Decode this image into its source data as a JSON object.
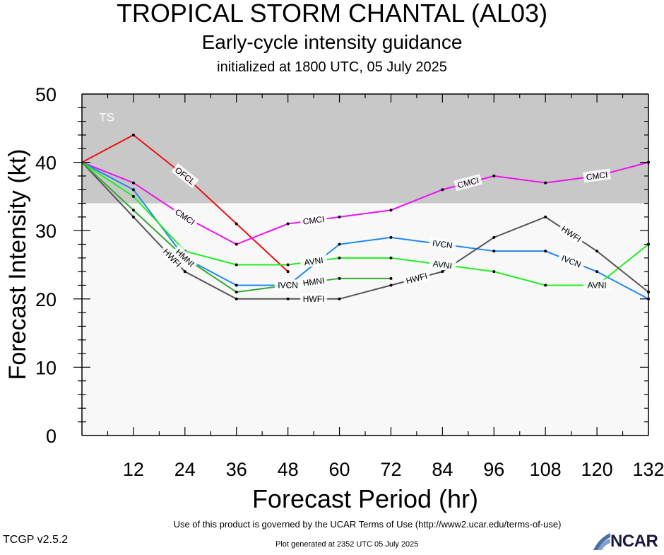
{
  "header": {
    "title": "TROPICAL STORM CHANTAL (AL03)",
    "subtitle": "Early-cycle intensity guidance",
    "initialized": "initialized at 1800 UTC, 05 July 2025"
  },
  "footer": {
    "terms": "Use of this product is governed by the UCAR Terms of Use (http://www2.ucar.edu/terms-of-use)",
    "version": "TCGP v2.5.2",
    "generated": "Plot generated at 2352 UTC   05 July 2025",
    "logo_text": "NCAR"
  },
  "chart_data": {
    "type": "line",
    "xlabel": "Forecast Period (hr)",
    "ylabel": "Forecast Intensity (kt)",
    "xlim": [
      0,
      132
    ],
    "ylim": [
      0,
      50
    ],
    "x_ticks": [
      12,
      24,
      36,
      48,
      60,
      72,
      84,
      96,
      108,
      120,
      132
    ],
    "y_ticks": [
      0,
      10,
      20,
      30,
      40,
      50
    ],
    "bands": [
      {
        "label": "TS",
        "from": 34,
        "to": 50,
        "color": "#c8c8c8"
      },
      {
        "label": "",
        "from": 0,
        "to": 34,
        "color": "#f8f8f8"
      }
    ],
    "series": [
      {
        "name": "OFCL",
        "color": "#ee1111",
        "x": [
          0,
          12,
          24,
          36,
          48
        ],
        "y": [
          40,
          44,
          38,
          31,
          24
        ],
        "label_at": [
          24
        ]
      },
      {
        "name": "CMCI",
        "color": "#ee11ee",
        "x": [
          0,
          12,
          24,
          36,
          48,
          60,
          72,
          84,
          96,
          108,
          120,
          132
        ],
        "y": [
          40,
          37,
          32,
          28,
          31,
          32,
          33,
          36,
          38,
          37,
          38,
          40
        ],
        "label_at": [
          24,
          54,
          90,
          120
        ]
      },
      {
        "name": "IVCN",
        "color": "#2288ee",
        "x": [
          0,
          12,
          24,
          36,
          48,
          60,
          72,
          84,
          96,
          108,
          120,
          132
        ],
        "y": [
          40,
          36,
          26,
          22,
          22,
          28,
          29,
          28,
          27,
          27,
          24,
          20
        ],
        "label_at": [
          48,
          84,
          114
        ]
      },
      {
        "name": "AVNI",
        "color": "#22ee22",
        "x": [
          0,
          12,
          24,
          36,
          48,
          60,
          72,
          84,
          96,
          108,
          120,
          132
        ],
        "y": [
          40,
          35,
          27,
          25,
          25,
          26,
          26,
          25,
          24,
          22,
          22,
          28
        ],
        "label_at": [
          54,
          84,
          120
        ]
      },
      {
        "name": "HWFI",
        "color": "#555555",
        "x": [
          0,
          12,
          24,
          36,
          48,
          60,
          72,
          84,
          96,
          108,
          120,
          132
        ],
        "y": [
          40,
          32,
          24,
          20,
          20,
          20,
          22,
          24,
          29,
          32,
          27,
          21
        ],
        "label_at": [
          21,
          54,
          78,
          114
        ]
      },
      {
        "name": "HMNI",
        "color": "#33aa33",
        "x": [
          0,
          12,
          24,
          36,
          48,
          60,
          72
        ],
        "y": [
          40,
          33,
          26,
          21,
          22,
          23,
          23
        ],
        "label_at": [
          24,
          54
        ]
      }
    ]
  }
}
